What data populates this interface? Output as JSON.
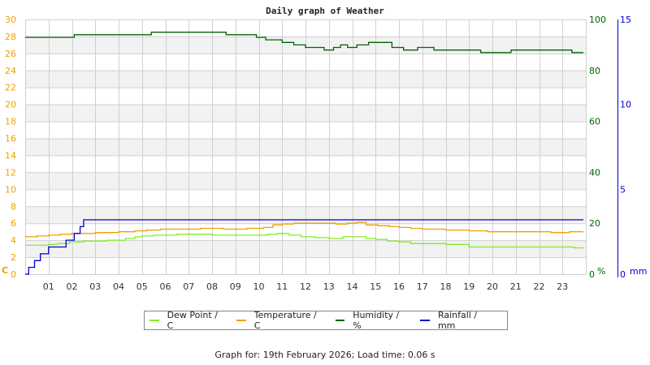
{
  "title": "Daily graph of Weather",
  "footer": "Graph for: 19th February 2026; Load time: 0.06 s",
  "colors": {
    "dew_point": "#80ee20",
    "temperature": "#f0a000",
    "humidity": "#006400",
    "rainfall": "#0000cc",
    "left_axis": "#f0a000",
    "humidity_axis": "#006400",
    "rain_axis": "#0000cc",
    "grid": "#d0d0d0",
    "band": "#f2f2f2"
  },
  "legend": [
    {
      "label": "Dew Point / C",
      "color": "#80ee20"
    },
    {
      "label": "Temperature / C",
      "color": "#f0a000"
    },
    {
      "label": "Humidity / %",
      "color": "#006400"
    },
    {
      "label": "Rainfall / mm",
      "color": "#0000cc"
    }
  ],
  "axes": {
    "left_unit": "C",
    "humidity_unit": "%",
    "rain_unit": "mm"
  },
  "chart_data": {
    "type": "line",
    "title": "Daily graph of Weather",
    "xlabel": "",
    "x_ticks": [
      "01",
      "02",
      "03",
      "04",
      "05",
      "06",
      "07",
      "08",
      "09",
      "10",
      "11",
      "12",
      "13",
      "14",
      "15",
      "16",
      "17",
      "18",
      "19",
      "20",
      "21",
      "22",
      "23"
    ],
    "xlim": [
      0,
      24
    ],
    "y_axes": [
      {
        "name": "Temperature / Dew Point",
        "unit": "C",
        "ylim": [
          0,
          30
        ],
        "ticks": [
          0,
          2,
          4,
          6,
          8,
          10,
          12,
          14,
          16,
          18,
          20,
          22,
          24,
          26,
          28,
          30
        ],
        "position": "left"
      },
      {
        "name": "Humidity",
        "unit": "%",
        "ylim": [
          0,
          100
        ],
        "ticks": [
          0,
          20,
          40,
          60,
          80,
          100
        ],
        "position": "right"
      },
      {
        "name": "Rainfall",
        "unit": "mm",
        "ylim": [
          0,
          15
        ],
        "ticks": [
          0,
          5,
          10,
          15
        ],
        "position": "right"
      }
    ],
    "grid": true,
    "legend_position": "bottom",
    "series": [
      {
        "name": "Dew Point / C",
        "axis": 0,
        "step": true,
        "x": [
          0,
          0.5,
          1.0,
          1.4,
          1.9,
          2.5,
          3.5,
          4.3,
          4.7,
          5.0,
          5.5,
          6.5,
          7.0,
          8.0,
          9.0,
          9.8,
          10.4,
          10.8,
          11.3,
          11.8,
          12.4,
          13.0,
          13.6,
          14.2,
          14.6,
          15.0,
          15.5,
          16.0,
          16.5,
          17.3,
          18.0,
          18.6,
          19.0,
          19.5,
          20.5,
          21.5,
          22.5,
          23.5,
          23.9
        ],
        "values": [
          3.4,
          3.4,
          3.5,
          3.6,
          3.8,
          3.9,
          4.0,
          4.2,
          4.4,
          4.5,
          4.6,
          4.7,
          4.7,
          4.6,
          4.6,
          4.6,
          4.7,
          4.8,
          4.6,
          4.4,
          4.3,
          4.2,
          4.4,
          4.4,
          4.2,
          4.1,
          3.9,
          3.8,
          3.6,
          3.6,
          3.5,
          3.5,
          3.2,
          3.2,
          3.2,
          3.2,
          3.2,
          3.1,
          3.1
        ]
      },
      {
        "name": "Temperature / C",
        "axis": 0,
        "step": true,
        "x": [
          0,
          0.5,
          1.0,
          1.5,
          2.0,
          3.0,
          4.0,
          4.7,
          5.2,
          5.8,
          6.5,
          7.5,
          8.5,
          9.5,
          10.2,
          10.6,
          11.0,
          11.5,
          12.5,
          13.3,
          13.8,
          14.2,
          14.6,
          15.1,
          15.6,
          16.0,
          16.5,
          17.0,
          18.0,
          19.0,
          19.8,
          20.5,
          21.5,
          22.5,
          23.3,
          23.9
        ],
        "values": [
          4.4,
          4.5,
          4.6,
          4.7,
          4.8,
          4.9,
          5.0,
          5.1,
          5.2,
          5.3,
          5.3,
          5.4,
          5.3,
          5.4,
          5.5,
          5.8,
          5.9,
          6.0,
          6.0,
          5.9,
          6.0,
          6.1,
          5.8,
          5.7,
          5.6,
          5.5,
          5.4,
          5.3,
          5.2,
          5.1,
          5.0,
          5.0,
          5.0,
          4.9,
          5.0,
          5.0
        ]
      },
      {
        "name": "Humidity / %",
        "axis": 1,
        "step": true,
        "x": [
          0,
          2.0,
          2.1,
          5.2,
          5.4,
          8.4,
          8.6,
          9.9,
          10.3,
          11.0,
          11.5,
          12.0,
          12.8,
          13.2,
          13.5,
          13.8,
          14.2,
          14.7,
          15.0,
          15.7,
          16.2,
          16.8,
          17.5,
          18.3,
          19.0,
          19.5,
          20.0,
          20.8,
          21.5,
          23.0,
          23.4,
          23.9
        ],
        "values": [
          93,
          93,
          94,
          94,
          95,
          95,
          94,
          93,
          92,
          91,
          90,
          89,
          88,
          89,
          90,
          89,
          90,
          91,
          91,
          89,
          88,
          89,
          88,
          88,
          88,
          87,
          87,
          88,
          88,
          88,
          87,
          87
        ]
      },
      {
        "name": "Rainfall / mm",
        "axis": 2,
        "step": true,
        "x": [
          0,
          0.15,
          0.4,
          0.65,
          1.0,
          1.75,
          2.1,
          2.35,
          2.5,
          23.9
        ],
        "values": [
          0.0,
          0.4,
          0.8,
          1.2,
          1.6,
          2.0,
          2.4,
          2.8,
          3.2,
          3.2
        ]
      }
    ]
  }
}
